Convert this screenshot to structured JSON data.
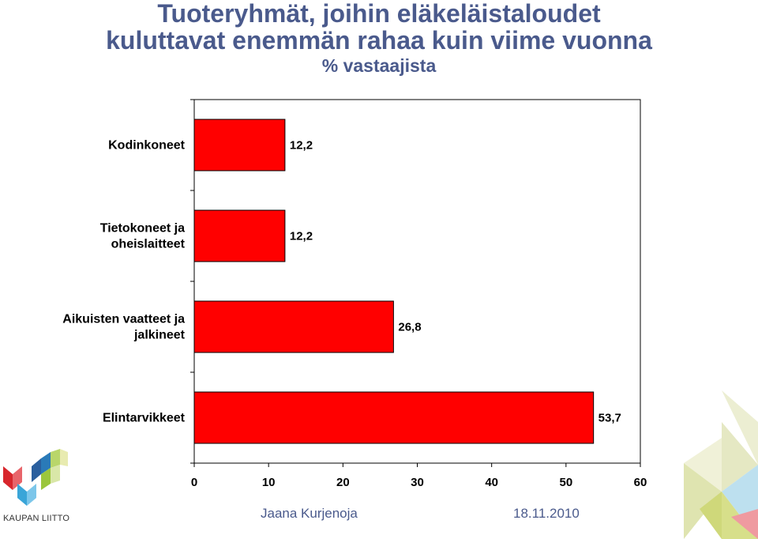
{
  "header": {
    "title_line1": "Tuoteryhmät, joihin eläkeläistaloudet",
    "title_line2": "kuluttavat enemmän rahaa kuin viime vuonna",
    "subtitle": "% vastaajista"
  },
  "chart_data": {
    "type": "bar",
    "orientation": "horizontal",
    "categories": [
      [
        "Kodinkoneet"
      ],
      [
        "Tietokoneet ja",
        "oheislaitteet"
      ],
      [
        "Aikuisten vaatteet ja",
        "jalkineet"
      ],
      [
        "Elintarvikkeet"
      ]
    ],
    "values": [
      12.2,
      12.2,
      26.8,
      53.7
    ],
    "value_labels": [
      "12,2",
      "12,2",
      "26,8",
      "53,7"
    ],
    "xlim": [
      0,
      60
    ],
    "xticks": [
      0,
      10,
      20,
      30,
      40,
      50,
      60
    ],
    "bar_color": "#ff0000",
    "grid": false,
    "legend": "none"
  },
  "footer": {
    "author": "Jaana Kurjenoja",
    "date": "18.11.2010"
  },
  "logo": {
    "text": "KAUPAN LIITTO",
    "icon": "kaupan-liitto-logo-icon"
  },
  "decoration": {
    "icon": "corner-triangles-decoration-icon"
  }
}
